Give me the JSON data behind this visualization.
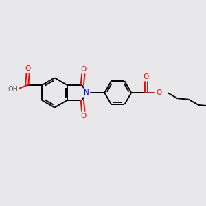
{
  "background_color": "#e8e8ea",
  "bond_color": "#000000",
  "bond_width": 1.4,
  "figsize": [
    3.0,
    3.0
  ],
  "dpi": 100,
  "atom_colors": {
    "O": "#ff0000",
    "N": "#0000ee",
    "H": "#606060"
  },
  "label_bg": "#e8e8ea"
}
